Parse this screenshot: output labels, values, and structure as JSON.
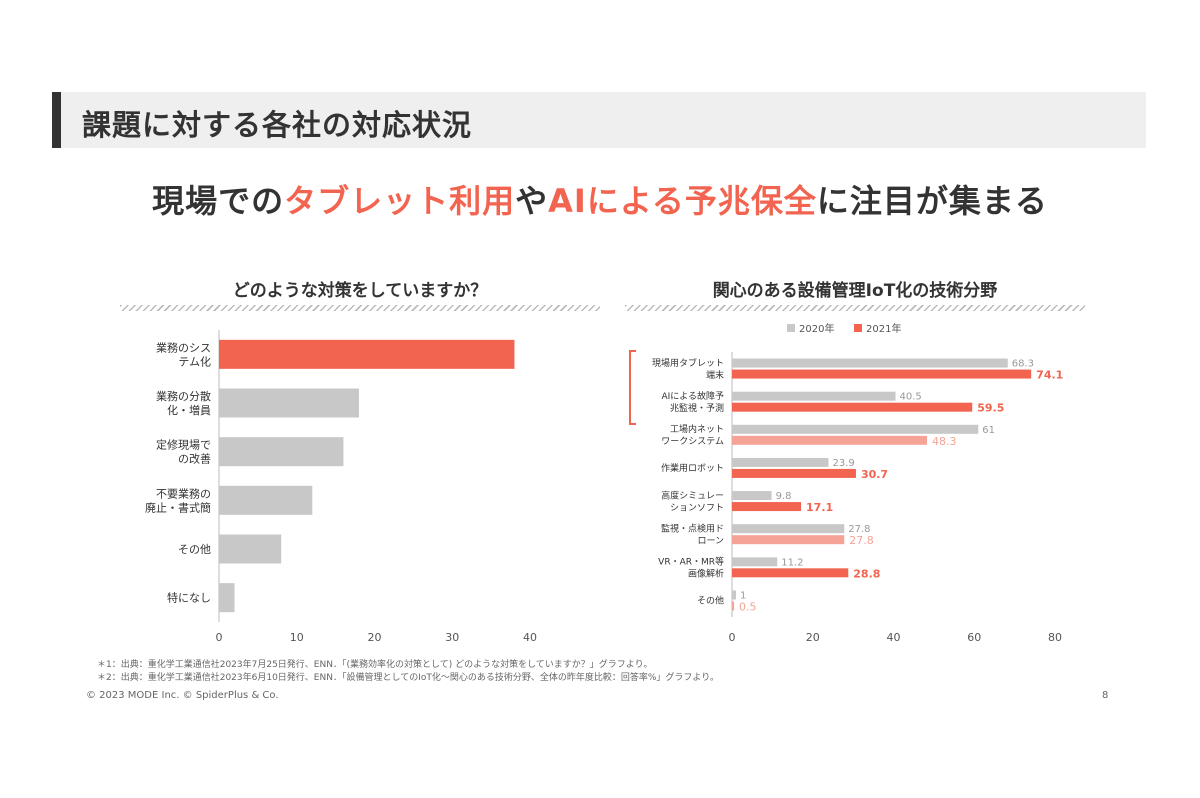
{
  "header": {
    "title": "課題に対する各社の対応状況"
  },
  "subtitle": {
    "pre": "現場での",
    "hl1": "タブレット利用",
    "mid": "や",
    "hl2": "AIによる予兆保全",
    "post": "に注目が集まる"
  },
  "colors": {
    "accent": "#f26450",
    "accent_light": "#f5a396",
    "gray": "#c8c8c8",
    "gray_text": "#999999"
  },
  "chart_data": [
    {
      "type": "bar",
      "orientation": "horizontal",
      "title": "どのような対策をしていますか？",
      "categories": [
        [
          "業務のシス",
          "テム化"
        ],
        [
          "業務の分散",
          "化・増員"
        ],
        [
          "定修現場で",
          "の改善"
        ],
        [
          "不要業務の",
          "廃止・書式簡"
        ],
        [
          "その他"
        ],
        [
          "特になし"
        ]
      ],
      "values": [
        38,
        18,
        16,
        12,
        8,
        2
      ],
      "highlight": [
        true,
        false,
        false,
        false,
        false,
        false
      ],
      "xlim": [
        0,
        40
      ],
      "xticks": [
        0,
        10,
        20,
        30,
        40
      ]
    },
    {
      "type": "bar",
      "orientation": "horizontal",
      "title": "関心のある設備管理IoT化の技術分野",
      "legend": [
        "2020年",
        "2021年"
      ],
      "categories": [
        [
          "現場用タブレット",
          "端末"
        ],
        [
          "AIによる故障予",
          "兆監視・予測"
        ],
        [
          "工場内ネット",
          "ワークシステム"
        ],
        [
          "作業用ロボット"
        ],
        [
          "高度シミュレー",
          "ションソフト"
        ],
        [
          "監視・点検用ド",
          "ローン"
        ],
        [
          "VR・AR・MR等",
          "画像解析"
        ],
        [
          "その他"
        ]
      ],
      "series": [
        {
          "name": "2020年",
          "values": [
            68.3,
            40.5,
            61,
            23.9,
            9.8,
            27.8,
            11.2,
            1
          ],
          "labels": [
            "68.3",
            "40.5",
            "61",
            "23.9",
            "9.8",
            "27.8",
            "11.2",
            "1"
          ]
        },
        {
          "name": "2021年",
          "values": [
            74.1,
            59.5,
            48.3,
            30.7,
            17.1,
            27.8,
            28.8,
            0.5
          ],
          "labels": [
            "74.1",
            "59.5",
            "48.3",
            "30.7",
            "17.1",
            "27.8",
            "28.8",
            "0.5"
          ],
          "emphasis": [
            true,
            true,
            false,
            true,
            true,
            false,
            true,
            false
          ]
        }
      ],
      "xlim": [
        0,
        80
      ],
      "xticks": [
        0,
        20,
        40,
        60,
        80
      ]
    }
  ],
  "footnotes": [
    "＊1：出典：重化学工業通信社2023年7月25日発行、ENN．「(業務効率化の対策として) どのような対策をしていますか？」グラフより。",
    "＊2：出典：重化学工業通信社2023年6月10日発行、ENN．「設備管理としてのIoT化～関心のある技術分野、全体の昨年度比較：回答率%」グラフより。"
  ],
  "copyright": "© 2023 MODE Inc. © SpiderPlus & Co.",
  "page_number": "8"
}
